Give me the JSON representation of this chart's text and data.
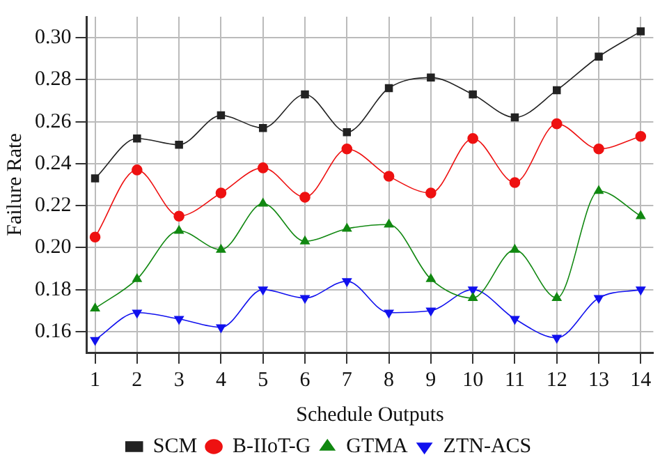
{
  "chart_data": {
    "type": "line",
    "xlabel": "Schedule Outputs",
    "ylabel": "Failure Rate",
    "x": [
      1,
      2,
      3,
      4,
      5,
      6,
      7,
      8,
      9,
      10,
      11,
      12,
      13,
      14
    ],
    "xlim": [
      0.8,
      14.3
    ],
    "xticks": [
      1,
      2,
      3,
      4,
      5,
      6,
      7,
      8,
      9,
      10,
      11,
      12,
      13,
      14
    ],
    "ylim": [
      0.15,
      0.31
    ],
    "yticks": [
      0.16,
      0.18,
      {
        "value": 0.2,
        "label": "0.20"
      },
      0.22,
      0.24,
      0.26,
      0.28,
      {
        "value": 0.3,
        "label": "0.30"
      }
    ],
    "grid": true,
    "legend": "bottom",
    "series": [
      {
        "name": "SCM",
        "color": "#222222",
        "marker": "square",
        "values": [
          0.233,
          0.252,
          0.249,
          0.263,
          0.257,
          0.273,
          0.255,
          0.276,
          0.281,
          0.273,
          0.262,
          0.275,
          0.291,
          0.303
        ]
      },
      {
        "name": "B-IIoT-G",
        "color": "#ee1111",
        "marker": "circle",
        "values": [
          0.205,
          0.237,
          0.215,
          0.226,
          0.238,
          0.224,
          0.247,
          0.234,
          0.226,
          0.252,
          0.231,
          0.259,
          0.247,
          0.253
        ]
      },
      {
        "name": "GTMA",
        "color": "#118811",
        "marker": "triangle",
        "values": [
          0.171,
          0.185,
          0.208,
          0.199,
          0.221,
          0.203,
          0.209,
          0.211,
          0.185,
          0.176,
          0.199,
          0.176,
          0.227,
          0.215
        ]
      },
      {
        "name": "ZTN-ACS",
        "color": "#1111ee",
        "marker": "triangle-down",
        "values": [
          0.156,
          0.169,
          0.166,
          0.162,
          0.18,
          0.176,
          0.184,
          0.169,
          0.17,
          0.18,
          0.166,
          0.157,
          0.176,
          0.18
        ]
      }
    ]
  }
}
